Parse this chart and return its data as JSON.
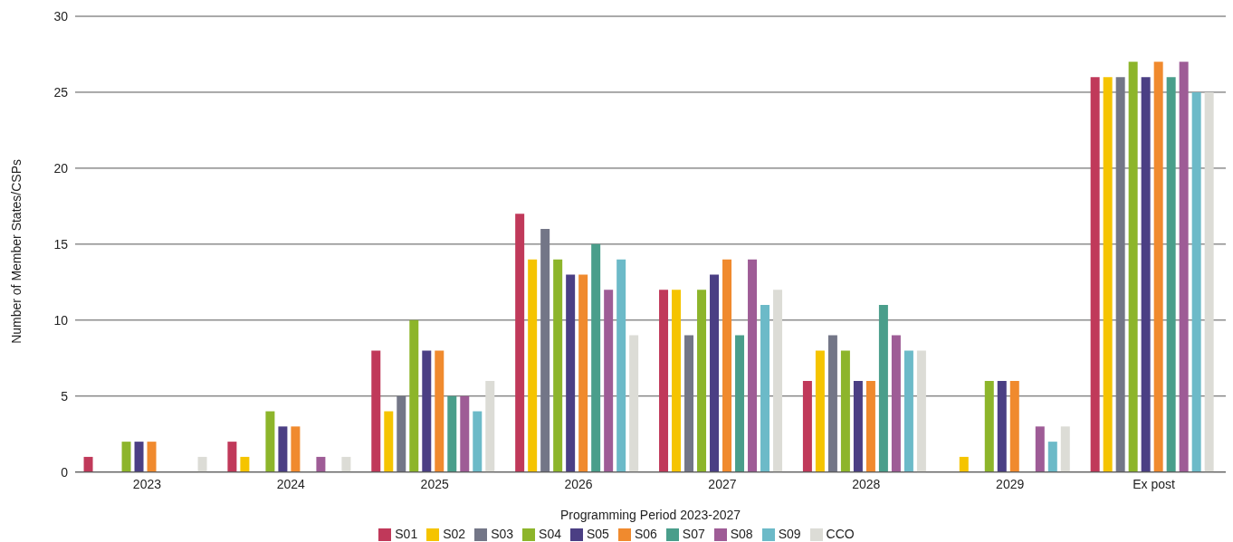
{
  "chart_data": {
    "type": "bar",
    "xlabel": "Programming Period 2023-2027",
    "ylabel": "Number of Member States/CSPs",
    "categories": [
      "2023",
      "2024",
      "2025",
      "2026",
      "2027",
      "2028",
      "2029",
      "Ex post"
    ],
    "series": [
      {
        "name": "S01",
        "color": "#c0395a",
        "values": [
          1,
          2,
          8,
          17,
          12,
          6,
          0,
          26
        ]
      },
      {
        "name": "S02",
        "color": "#f5c400",
        "values": [
          0,
          1,
          4,
          14,
          12,
          8,
          1,
          26
        ]
      },
      {
        "name": "S03",
        "color": "#737687",
        "values": [
          0,
          0,
          5,
          16,
          9,
          9,
          0,
          26
        ]
      },
      {
        "name": "S04",
        "color": "#8db52b",
        "values": [
          2,
          4,
          10,
          14,
          12,
          8,
          6,
          27
        ]
      },
      {
        "name": "S05",
        "color": "#4b3f84",
        "values": [
          2,
          3,
          8,
          13,
          13,
          6,
          6,
          26
        ]
      },
      {
        "name": "S06",
        "color": "#f08a2e",
        "values": [
          2,
          3,
          8,
          13,
          14,
          6,
          6,
          27
        ]
      },
      {
        "name": "S07",
        "color": "#4a9e8b",
        "values": [
          0,
          0,
          5,
          15,
          9,
          11,
          0,
          26
        ]
      },
      {
        "name": "S08",
        "color": "#9e5c96",
        "values": [
          0,
          1,
          5,
          12,
          14,
          9,
          3,
          27
        ]
      },
      {
        "name": "S09",
        "color": "#6cbac8",
        "values": [
          0,
          0,
          4,
          14,
          11,
          8,
          2,
          25
        ]
      },
      {
        "name": "CCO",
        "color": "#dcdcd6",
        "values": [
          1,
          1,
          6,
          9,
          12,
          8,
          3,
          25
        ]
      }
    ],
    "ylim": [
      0,
      30
    ],
    "yticks": [
      0,
      5,
      10,
      15,
      20,
      25,
      30
    ],
    "grid": "y",
    "legend": "bottom"
  }
}
